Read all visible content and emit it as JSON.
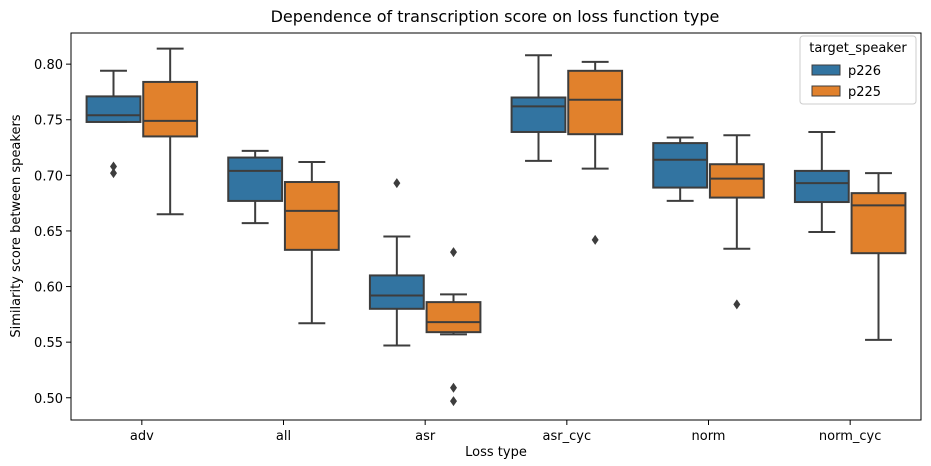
{
  "chart_data": {
    "type": "box",
    "title": "Dependence of transcription score on loss function type",
    "xlabel": "Loss type",
    "ylabel": "Similarity score between speakers",
    "categories": [
      "adv",
      "all",
      "asr",
      "asr_cyc",
      "norm",
      "norm_cyc"
    ],
    "ylim": [
      0.48,
      0.828
    ],
    "yticks": [
      "0.50",
      "0.55",
      "0.60",
      "0.65",
      "0.70",
      "0.75",
      "0.80"
    ],
    "grid": false,
    "legend": {
      "title": "target_speaker",
      "placement": "top-right"
    },
    "series": [
      {
        "name": "p226",
        "color": "#3274a1",
        "boxes": [
          {
            "whislo": 0.748,
            "q1": 0.748,
            "med": 0.754,
            "q3": 0.771,
            "whishi": 0.794,
            "fliers": [
              0.708,
              0.702
            ]
          },
          {
            "whislo": 0.657,
            "q1": 0.677,
            "med": 0.704,
            "q3": 0.716,
            "whishi": 0.722,
            "fliers": []
          },
          {
            "whislo": 0.547,
            "q1": 0.58,
            "med": 0.592,
            "q3": 0.61,
            "whishi": 0.645,
            "fliers": [
              0.693
            ]
          },
          {
            "whislo": 0.713,
            "q1": 0.739,
            "med": 0.762,
            "q3": 0.77,
            "whishi": 0.808,
            "fliers": []
          },
          {
            "whislo": 0.677,
            "q1": 0.689,
            "med": 0.714,
            "q3": 0.729,
            "whishi": 0.734,
            "fliers": []
          },
          {
            "whislo": 0.649,
            "q1": 0.676,
            "med": 0.693,
            "q3": 0.704,
            "whishi": 0.739,
            "fliers": []
          }
        ]
      },
      {
        "name": "p225",
        "color": "#e1812c",
        "boxes": [
          {
            "whislo": 0.665,
            "q1": 0.735,
            "med": 0.749,
            "q3": 0.784,
            "whishi": 0.814,
            "fliers": []
          },
          {
            "whislo": 0.567,
            "q1": 0.633,
            "med": 0.668,
            "q3": 0.694,
            "whishi": 0.712,
            "fliers": []
          },
          {
            "whislo": 0.557,
            "q1": 0.559,
            "med": 0.568,
            "q3": 0.586,
            "whishi": 0.593,
            "fliers": [
              0.631,
              0.509,
              0.497
            ]
          },
          {
            "whislo": 0.706,
            "q1": 0.737,
            "med": 0.768,
            "q3": 0.794,
            "whishi": 0.802,
            "fliers": [
              0.642
            ]
          },
          {
            "whislo": 0.634,
            "q1": 0.68,
            "med": 0.697,
            "q3": 0.71,
            "whishi": 0.736,
            "fliers": [
              0.584
            ]
          },
          {
            "whislo": 0.552,
            "q1": 0.63,
            "med": 0.673,
            "q3": 0.684,
            "whishi": 0.702,
            "fliers": []
          }
        ]
      }
    ]
  }
}
